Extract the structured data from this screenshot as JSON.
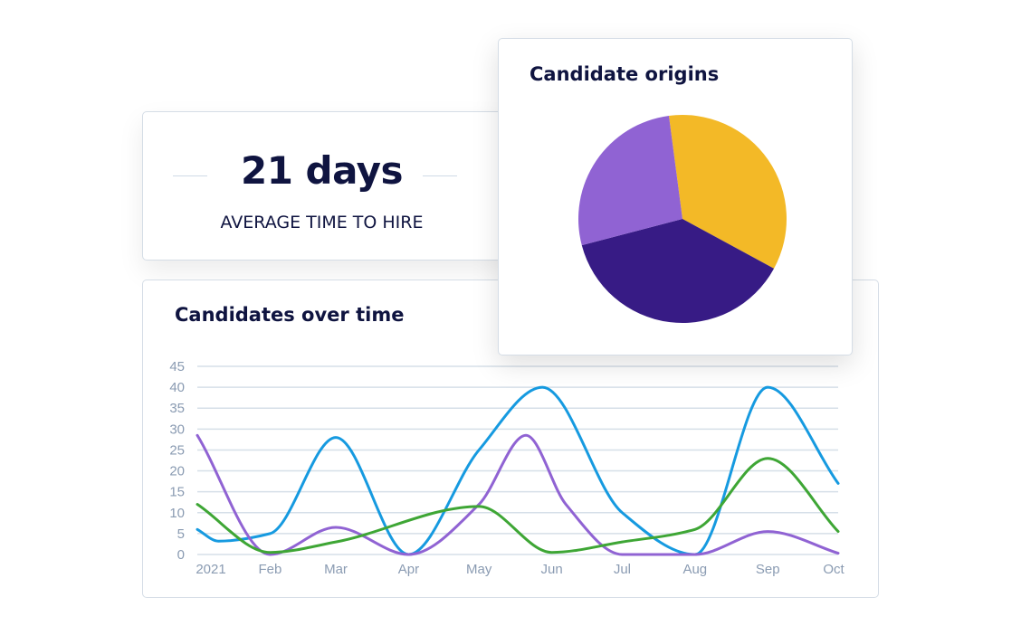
{
  "metric": {
    "value": "21 days",
    "label": "AVERAGE TIME TO HIRE"
  },
  "chart_data": [
    {
      "type": "pie",
      "title": "Candidate origins",
      "start_angle_deg": -7.5,
      "slices": [
        {
          "value": 35,
          "color": "#f3b927"
        },
        {
          "value": 38,
          "color": "#371b85"
        },
        {
          "value": 27,
          "color": "#9063d3"
        }
      ]
    },
    {
      "type": "line",
      "title": "Candidates over time",
      "xlabel": "",
      "ylabel": "",
      "x_range": [
        "2021-01-01",
        "2021-10-01"
      ],
      "ylim": [
        0,
        45
      ],
      "y_ticks": [
        0,
        5,
        10,
        15,
        20,
        25,
        30,
        35,
        40,
        45
      ],
      "x_ticks": [
        {
          "date": "2021-01-01",
          "label": "2021"
        },
        {
          "date": "2021-02-01",
          "label": "Feb"
        },
        {
          "date": "2021-03-01",
          "label": "Mar"
        },
        {
          "date": "2021-04-01",
          "label": "Apr"
        },
        {
          "date": "2021-05-01",
          "label": "May"
        },
        {
          "date": "2021-06-01",
          "label": "Jun"
        },
        {
          "date": "2021-07-01",
          "label": "Jul"
        },
        {
          "date": "2021-08-01",
          "label": "Aug"
        },
        {
          "date": "2021-09-01",
          "label": "Sep"
        },
        {
          "date": "2021-10-01",
          "label": "Oct"
        }
      ],
      "grid": true,
      "series": [
        {
          "color": "#169ae0",
          "points": [
            [
              "2021-01-01",
              6
            ],
            [
              "2021-01-10",
              3.2
            ],
            [
              "2021-02-01",
              5
            ],
            [
              "2021-03-01",
              28
            ],
            [
              "2021-04-01",
              0
            ],
            [
              "2021-05-01",
              25
            ],
            [
              "2021-05-28",
              40
            ],
            [
              "2021-07-01",
              10
            ],
            [
              "2021-08-01",
              0
            ],
            [
              "2021-09-01",
              40
            ],
            [
              "2021-10-01",
              17
            ]
          ]
        },
        {
          "color": "#9063d3",
          "points": [
            [
              "2021-01-01",
              28.5
            ],
            [
              "2021-02-01",
              0
            ],
            [
              "2021-03-01",
              6.5
            ],
            [
              "2021-04-01",
              0
            ],
            [
              "2021-05-01",
              12
            ],
            [
              "2021-05-21",
              28.5
            ],
            [
              "2021-06-07",
              12
            ],
            [
              "2021-07-01",
              0
            ],
            [
              "2021-08-01",
              0
            ],
            [
              "2021-09-01",
              5.5
            ],
            [
              "2021-10-01",
              0.3
            ]
          ]
        },
        {
          "color": "#3ea635",
          "points": [
            [
              "2021-01-01",
              12
            ],
            [
              "2021-02-01",
              0.5
            ],
            [
              "2021-03-01",
              3
            ],
            [
              "2021-05-01",
              11.5
            ],
            [
              "2021-06-01",
              0.5
            ],
            [
              "2021-07-01",
              3
            ],
            [
              "2021-08-01",
              6
            ],
            [
              "2021-09-01",
              23
            ],
            [
              "2021-10-01",
              5.5
            ]
          ]
        }
      ]
    }
  ]
}
